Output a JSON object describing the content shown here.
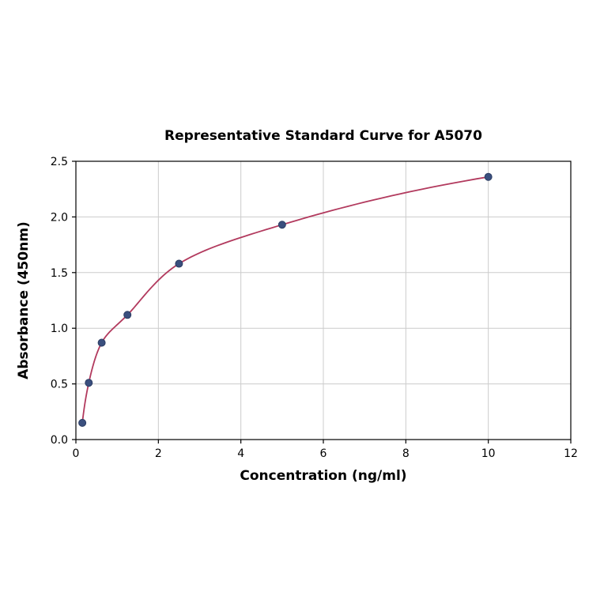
{
  "chart_data": {
    "type": "scatter",
    "title": "Representative Standard Curve for A5070",
    "xlabel": "Concentration (ng/ml)",
    "ylabel": "Absorbance (450nm)",
    "xlim": [
      0,
      12
    ],
    "ylim": [
      0,
      2.5
    ],
    "x_ticks": [
      "0",
      "2",
      "4",
      "6",
      "8",
      "10",
      "12"
    ],
    "x_tick_values": [
      0,
      2,
      4,
      6,
      8,
      10,
      12
    ],
    "y_ticks": [
      "0.0",
      "0.5",
      "1.0",
      "1.5",
      "2.0",
      "2.5"
    ],
    "y_tick_values": [
      0,
      0.5,
      1.0,
      1.5,
      2.0,
      2.5
    ],
    "grid": true,
    "legend": "none",
    "points": [
      {
        "x": 0.156,
        "y": 0.15
      },
      {
        "x": 0.3125,
        "y": 0.51
      },
      {
        "x": 0.625,
        "y": 0.87
      },
      {
        "x": 1.25,
        "y": 1.12
      },
      {
        "x": 2.5,
        "y": 1.58
      },
      {
        "x": 5,
        "y": 1.93
      },
      {
        "x": 10,
        "y": 2.36
      }
    ],
    "curve": "smooth fit through points (4PL-style saturation curve)",
    "colors": {
      "point": "#3a4f7e",
      "curve": "#b23a5e",
      "grid": "#cccccc",
      "axis": "#000000",
      "background": "#ffffff"
    }
  }
}
